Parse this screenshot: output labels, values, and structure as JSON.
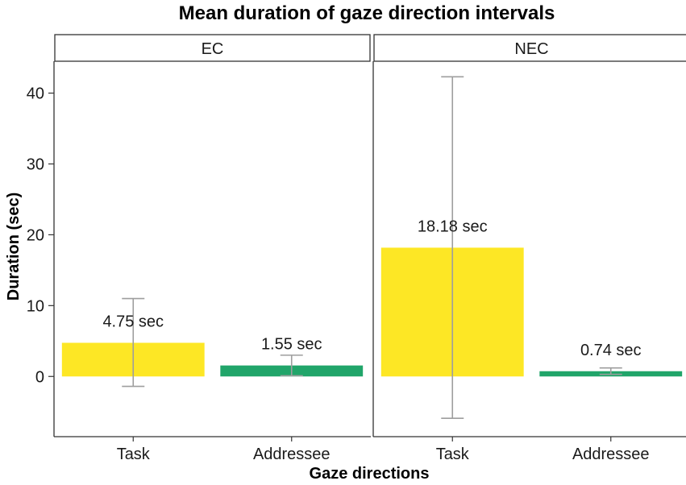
{
  "chart_data": {
    "type": "bar",
    "title": "Mean duration of gaze direction intervals",
    "xlabel": "Gaze directions",
    "ylabel": "Duration (sec)",
    "ylim": [
      -8.5,
      44.5
    ],
    "yticks": [
      0,
      10,
      20,
      30,
      40
    ],
    "categories": [
      "Task",
      "Addressee"
    ],
    "colors": {
      "Task": "#fde725",
      "Addressee": "#21a56a",
      "errorbar": "#9e9e9e"
    },
    "grid": false,
    "legend": "none",
    "panels": [
      {
        "name": "EC",
        "values": [
          4.75,
          1.55
        ],
        "labels": [
          "4.75 sec",
          "1.55 sec"
        ],
        "error_low": [
          -1.4,
          0.1
        ],
        "error_high": [
          11.0,
          3.0
        ]
      },
      {
        "name": "NEC",
        "values": [
          18.18,
          0.74
        ],
        "labels": [
          "18.18 sec",
          "0.74 sec"
        ],
        "error_low": [
          -5.9,
          0.3
        ],
        "error_high": [
          42.3,
          1.2
        ]
      }
    ]
  }
}
